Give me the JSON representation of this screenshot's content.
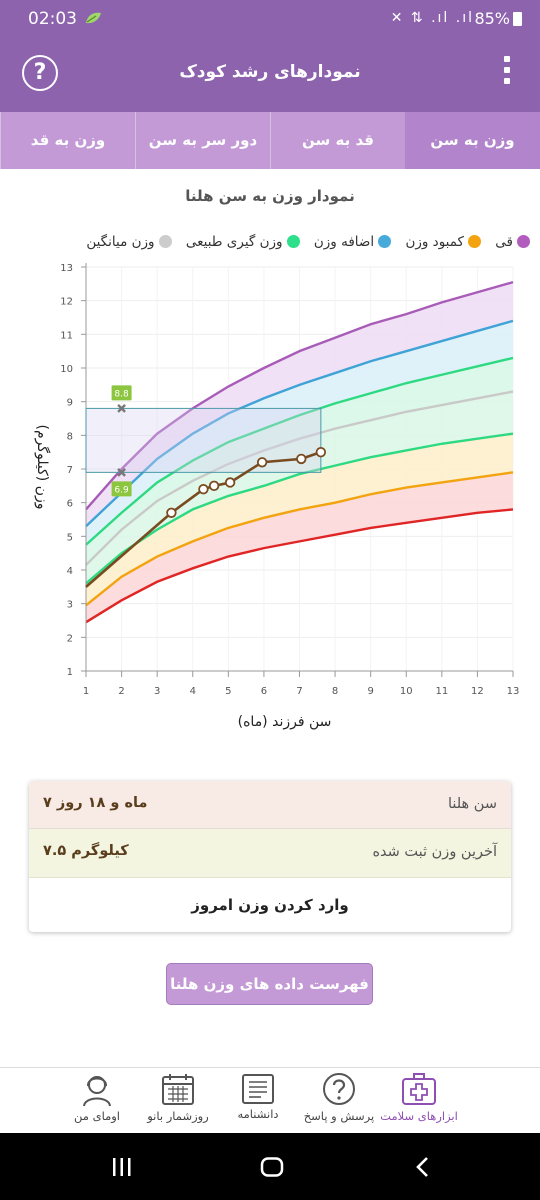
{
  "status_bar": {
    "time": "02:03",
    "icons": "✕ ⇅ .ıl .ıl",
    "battery": "85%"
  },
  "app_bar": {
    "title": "نمودارهای رشد کودک",
    "help_label": "?"
  },
  "tabs": [
    {
      "label": "وزن به سن",
      "active": true
    },
    {
      "label": "قد به سن",
      "active": false
    },
    {
      "label": "دور سر به سن",
      "active": false
    },
    {
      "label": "وزن به قد",
      "active": false
    }
  ],
  "chart_title": "نمودار وزن به سن هلنا",
  "legend": [
    {
      "label": "قی",
      "color": "#b25dbe"
    },
    {
      "label": "کمبود وزن",
      "color": "#f2a30f"
    },
    {
      "label": "اضافه وزن",
      "color": "#46aadb"
    },
    {
      "label": "وزن گیری طبیعی",
      "color": "#2ee08a"
    },
    {
      "label": "وزن میانگین",
      "color": "#cccccc"
    }
  ],
  "chart_data": {
    "type": "line",
    "xlabel": "سن فرزند (ماه)",
    "ylabel": "وزن (کیلوگرم)",
    "xlim": [
      1,
      13
    ],
    "ylim": [
      1,
      13
    ],
    "x_ticks": [
      1,
      2,
      3,
      4,
      5,
      6,
      7,
      8,
      9,
      10,
      11,
      12,
      13
    ],
    "y_ticks": [
      1,
      2,
      3,
      4,
      5,
      6,
      7,
      8,
      9,
      10,
      11,
      12,
      13
    ],
    "x": [
      1,
      2,
      3,
      4,
      5,
      6,
      7,
      8,
      9,
      10,
      11,
      12,
      13
    ],
    "series": [
      {
        "key": "purple",
        "color": "#a85cb8",
        "values": [
          5.8,
          7.0,
          8.05,
          8.8,
          9.45,
          10.0,
          10.5,
          10.9,
          11.3,
          11.6,
          11.95,
          12.25,
          12.55
        ]
      },
      {
        "key": "blue",
        "color": "#3fa3d6",
        "values": [
          5.3,
          6.3,
          7.3,
          8.05,
          8.65,
          9.1,
          9.5,
          9.85,
          10.2,
          10.5,
          10.8,
          11.1,
          11.4
        ]
      },
      {
        "key": "green",
        "color": "#2dd981",
        "values": [
          4.75,
          5.7,
          6.6,
          7.25,
          7.8,
          8.2,
          8.6,
          8.95,
          9.25,
          9.55,
          9.8,
          10.05,
          10.3
        ]
      },
      {
        "key": "grey",
        "color": "#c9c9c9",
        "values": [
          4.15,
          5.2,
          6.05,
          6.65,
          7.15,
          7.55,
          7.9,
          8.2,
          8.45,
          8.7,
          8.9,
          9.1,
          9.3
        ]
      },
      {
        "key": "green2",
        "color": "#2dd981",
        "values": [
          3.6,
          4.5,
          5.2,
          5.8,
          6.2,
          6.5,
          6.85,
          7.1,
          7.35,
          7.55,
          7.75,
          7.9,
          8.05
        ]
      },
      {
        "key": "orange",
        "color": "#f2a30f",
        "values": [
          2.95,
          3.8,
          4.4,
          4.85,
          5.25,
          5.55,
          5.8,
          6.0,
          6.25,
          6.45,
          6.6,
          6.75,
          6.9
        ]
      },
      {
        "key": "red",
        "color": "#e02525",
        "values": [
          2.45,
          3.1,
          3.65,
          4.05,
          4.4,
          4.65,
          4.85,
          5.05,
          5.25,
          5.4,
          5.55,
          5.7,
          5.8
        ]
      }
    ],
    "measurements": {
      "color": "#7a4a20",
      "x": [
        1,
        3.4,
        4.3,
        4.6,
        5.05,
        5.95,
        7.05,
        7.6
      ],
      "y": [
        3.5,
        5.7,
        6.4,
        6.5,
        6.6,
        7.2,
        7.3,
        7.5
      ]
    },
    "range_box": {
      "x_from": 1,
      "x_to": 7.6,
      "y_low": 6.9,
      "y_high": 8.8,
      "low_label": "6.9",
      "high_label": "8.8"
    }
  },
  "info": {
    "age_label": "سن هلنا",
    "age_value": "۷ ماه و ۱۸ روز",
    "weight_label": "آخرین وزن ثبت شده",
    "weight_value": "۷.۵ کیلوگرم",
    "enter_button": "وارد کردن وزن امروز"
  },
  "list_button": "فهرست داده های وزن هلنا",
  "bottom_nav": [
    {
      "label": "ابزارهای سلامت",
      "icon": "medical-kit-icon",
      "active": true
    },
    {
      "label": "پرسش و پاسخ",
      "icon": "question-bubble-icon",
      "active": false
    },
    {
      "label": "دانشنامه",
      "icon": "encyclopedia-icon",
      "active": false
    },
    {
      "label": "روزشمار بانو",
      "icon": "calendar-icon",
      "active": false
    },
    {
      "label": "اومای من",
      "icon": "profile-woman-icon",
      "active": false
    }
  ]
}
